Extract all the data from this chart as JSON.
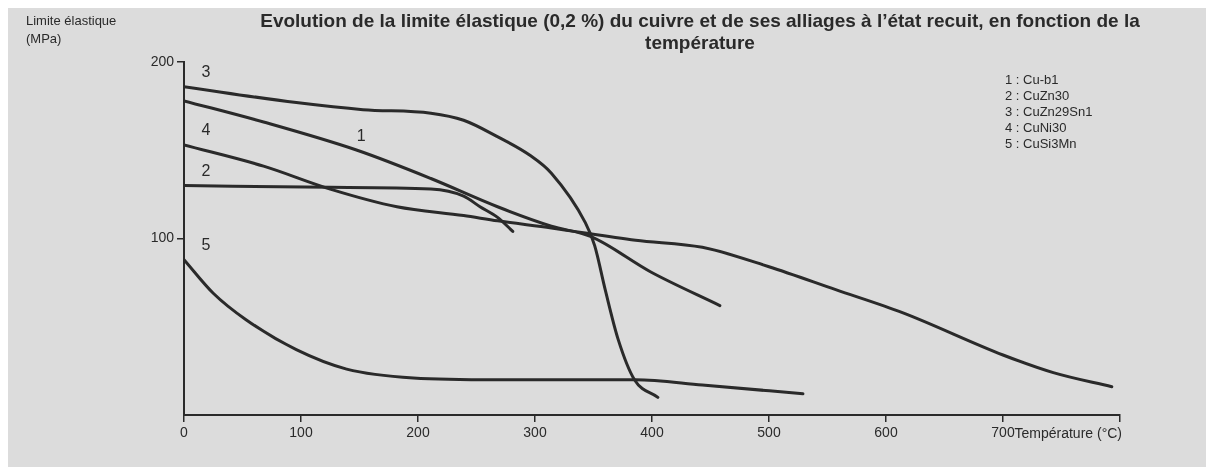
{
  "chart_data": {
    "type": "line",
    "title": "Evolution de la limite élastique (0,2 %) du cuivre et de ses alliages à l’état recuit, en fonction de la température",
    "ylabel": "Limite élastique (MPa)",
    "xlabel": "Température (°C)",
    "xlim": [
      0,
      800
    ],
    "xticks": [
      0,
      100,
      200,
      300,
      400,
      500,
      600,
      700,
      {
        "value": 800,
        "label": null
      }
    ],
    "ylim": [
      0,
      200
    ],
    "yticks": [
      100,
      200
    ],
    "grid": false,
    "marker": "none",
    "line_style": "solid",
    "series": [
      {
        "name": "1",
        "color": "#2a2a2a",
        "x": [
          0,
          68,
          148,
          211,
          268,
          314,
          348,
          399,
          458
        ],
        "values": [
          178,
          166,
          150,
          134,
          118,
          107,
          101,
          81,
          62
        ]
      },
      {
        "name": "2",
        "color": "#2a2a2a",
        "x": [
          0,
          125,
          211,
          239,
          253,
          268,
          281
        ],
        "values": [
          130,
          129,
          128,
          124,
          118,
          112,
          104
        ]
      },
      {
        "name": "3",
        "color": "#2a2a2a",
        "x": [
          0,
          96,
          153,
          211,
          239,
          267,
          296,
          314,
          343,
          351,
          360,
          371,
          385,
          405
        ],
        "values": [
          186,
          177,
          173,
          171,
          167,
          158,
          147,
          137,
          109,
          96,
          71,
          43,
          20,
          10
        ]
      },
      {
        "name": "4",
        "color": "#2a2a2a",
        "x": [
          0,
          68,
          125,
          182,
          239,
          268,
          314,
          386,
          443,
          500,
          557,
          614,
          700,
          743,
          793
        ],
        "values": [
          153,
          141,
          128,
          118,
          113,
          110,
          106,
          99,
          95,
          84,
          71,
          58,
          34,
          24,
          16
        ]
      },
      {
        "name": "5",
        "color": "#2a2a2a",
        "x": [
          0,
          25,
          53,
          96,
          139,
          196,
          268,
          386,
          443,
          529
        ],
        "values": [
          88,
          69,
          54,
          37,
          26,
          21,
          20,
          20,
          17,
          12
        ]
      }
    ],
    "annotations": [
      "1 : Cu-b1",
      "2 : CuZn30",
      "3 : CuZn29Sn1",
      "4 : CuNi30",
      "5 : CuSi3Mn"
    ]
  }
}
